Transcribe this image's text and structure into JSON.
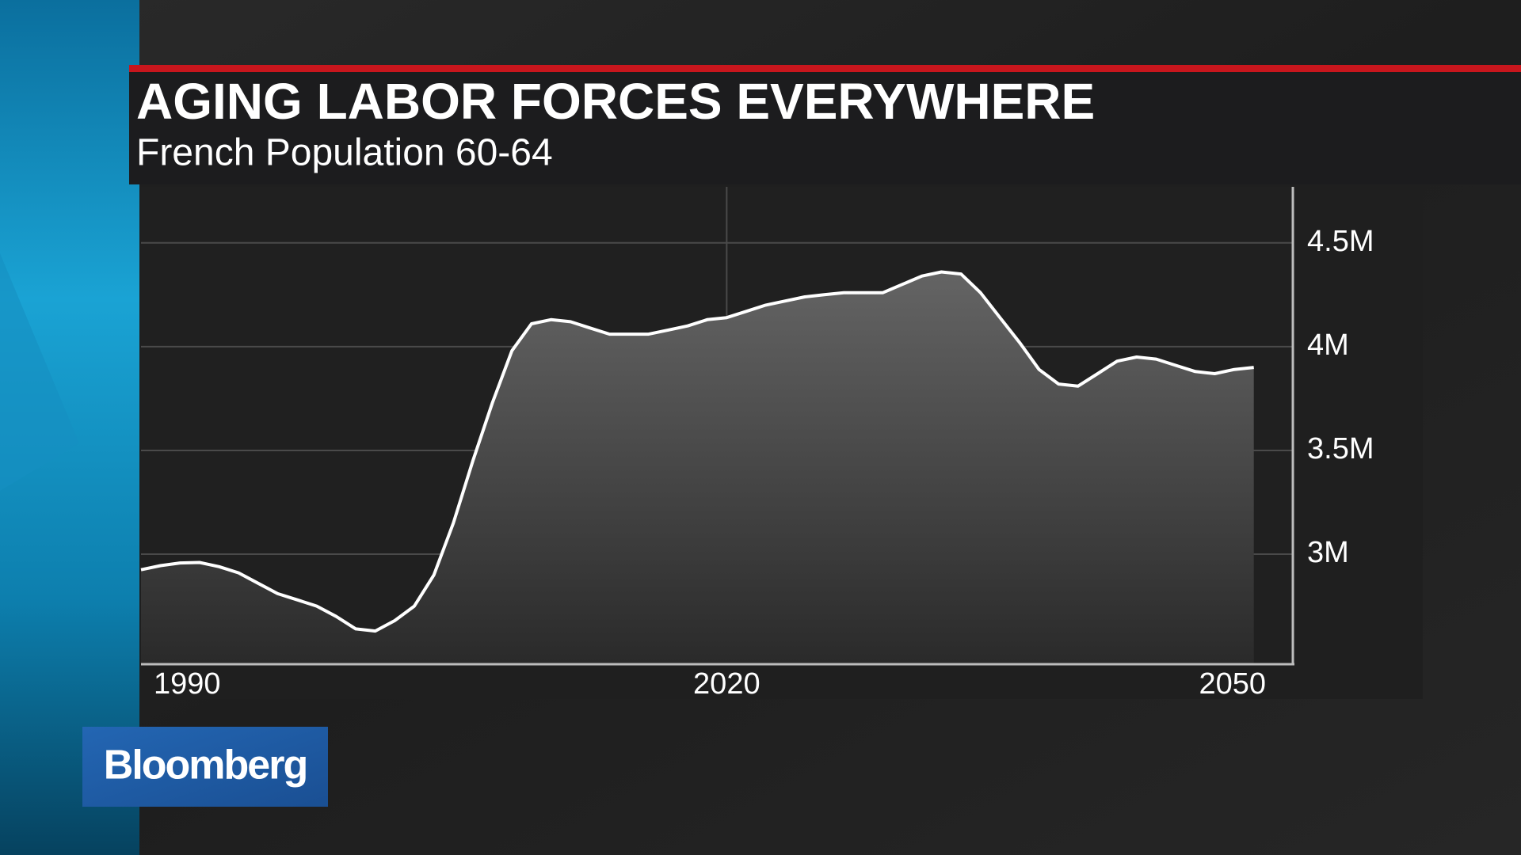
{
  "brand": "Bloomberg",
  "chart_data": {
    "type": "area",
    "title": "AGING LABOR FORCES EVERYWHERE",
    "subtitle": "French Population 60-64",
    "x": [
      1990,
      1991,
      1992,
      1993,
      1994,
      1995,
      1996,
      1997,
      1998,
      1999,
      2000,
      2001,
      2002,
      2003,
      2004,
      2005,
      2006,
      2007,
      2008,
      2009,
      2010,
      2011,
      2012,
      2013,
      2014,
      2015,
      2016,
      2017,
      2018,
      2019,
      2020,
      2021,
      2022,
      2023,
      2024,
      2025,
      2026,
      2027,
      2028,
      2029,
      2030,
      2031,
      2032,
      2033,
      2034,
      2035,
      2036,
      2037,
      2038,
      2039,
      2040,
      2041,
      2042,
      2043,
      2044,
      2045,
      2046,
      2047
    ],
    "values": [
      2925000,
      2945000,
      2958000,
      2960000,
      2940000,
      2910000,
      2860000,
      2810000,
      2780000,
      2750000,
      2700000,
      2640000,
      2630000,
      2680000,
      2750000,
      2900000,
      3150000,
      3450000,
      3730000,
      3980000,
      4110000,
      4130000,
      4120000,
      4090000,
      4060000,
      4060000,
      4060000,
      4080000,
      4100000,
      4130000,
      4140000,
      4170000,
      4200000,
      4220000,
      4240000,
      4250000,
      4260000,
      4260000,
      4260000,
      4300000,
      4340000,
      4360000,
      4350000,
      4260000,
      4140000,
      4020000,
      3890000,
      3820000,
      3810000,
      3870000,
      3930000,
      3950000,
      3940000,
      3910000,
      3880000,
      3870000,
      3890000,
      3900000
    ],
    "color": "#ffffff",
    "xlim": [
      1990,
      2049
    ],
    "xticks": [
      1990,
      2020,
      2050
    ],
    "ylim": [
      2470000,
      4770000
    ],
    "yticks": [
      {
        "value": 3000000,
        "label": "3M"
      },
      {
        "value": 3500000,
        "label": "3.5M"
      },
      {
        "value": 4000000,
        "label": "4M"
      },
      {
        "value": 4500000,
        "label": "4.5M"
      }
    ],
    "grid": true
  }
}
